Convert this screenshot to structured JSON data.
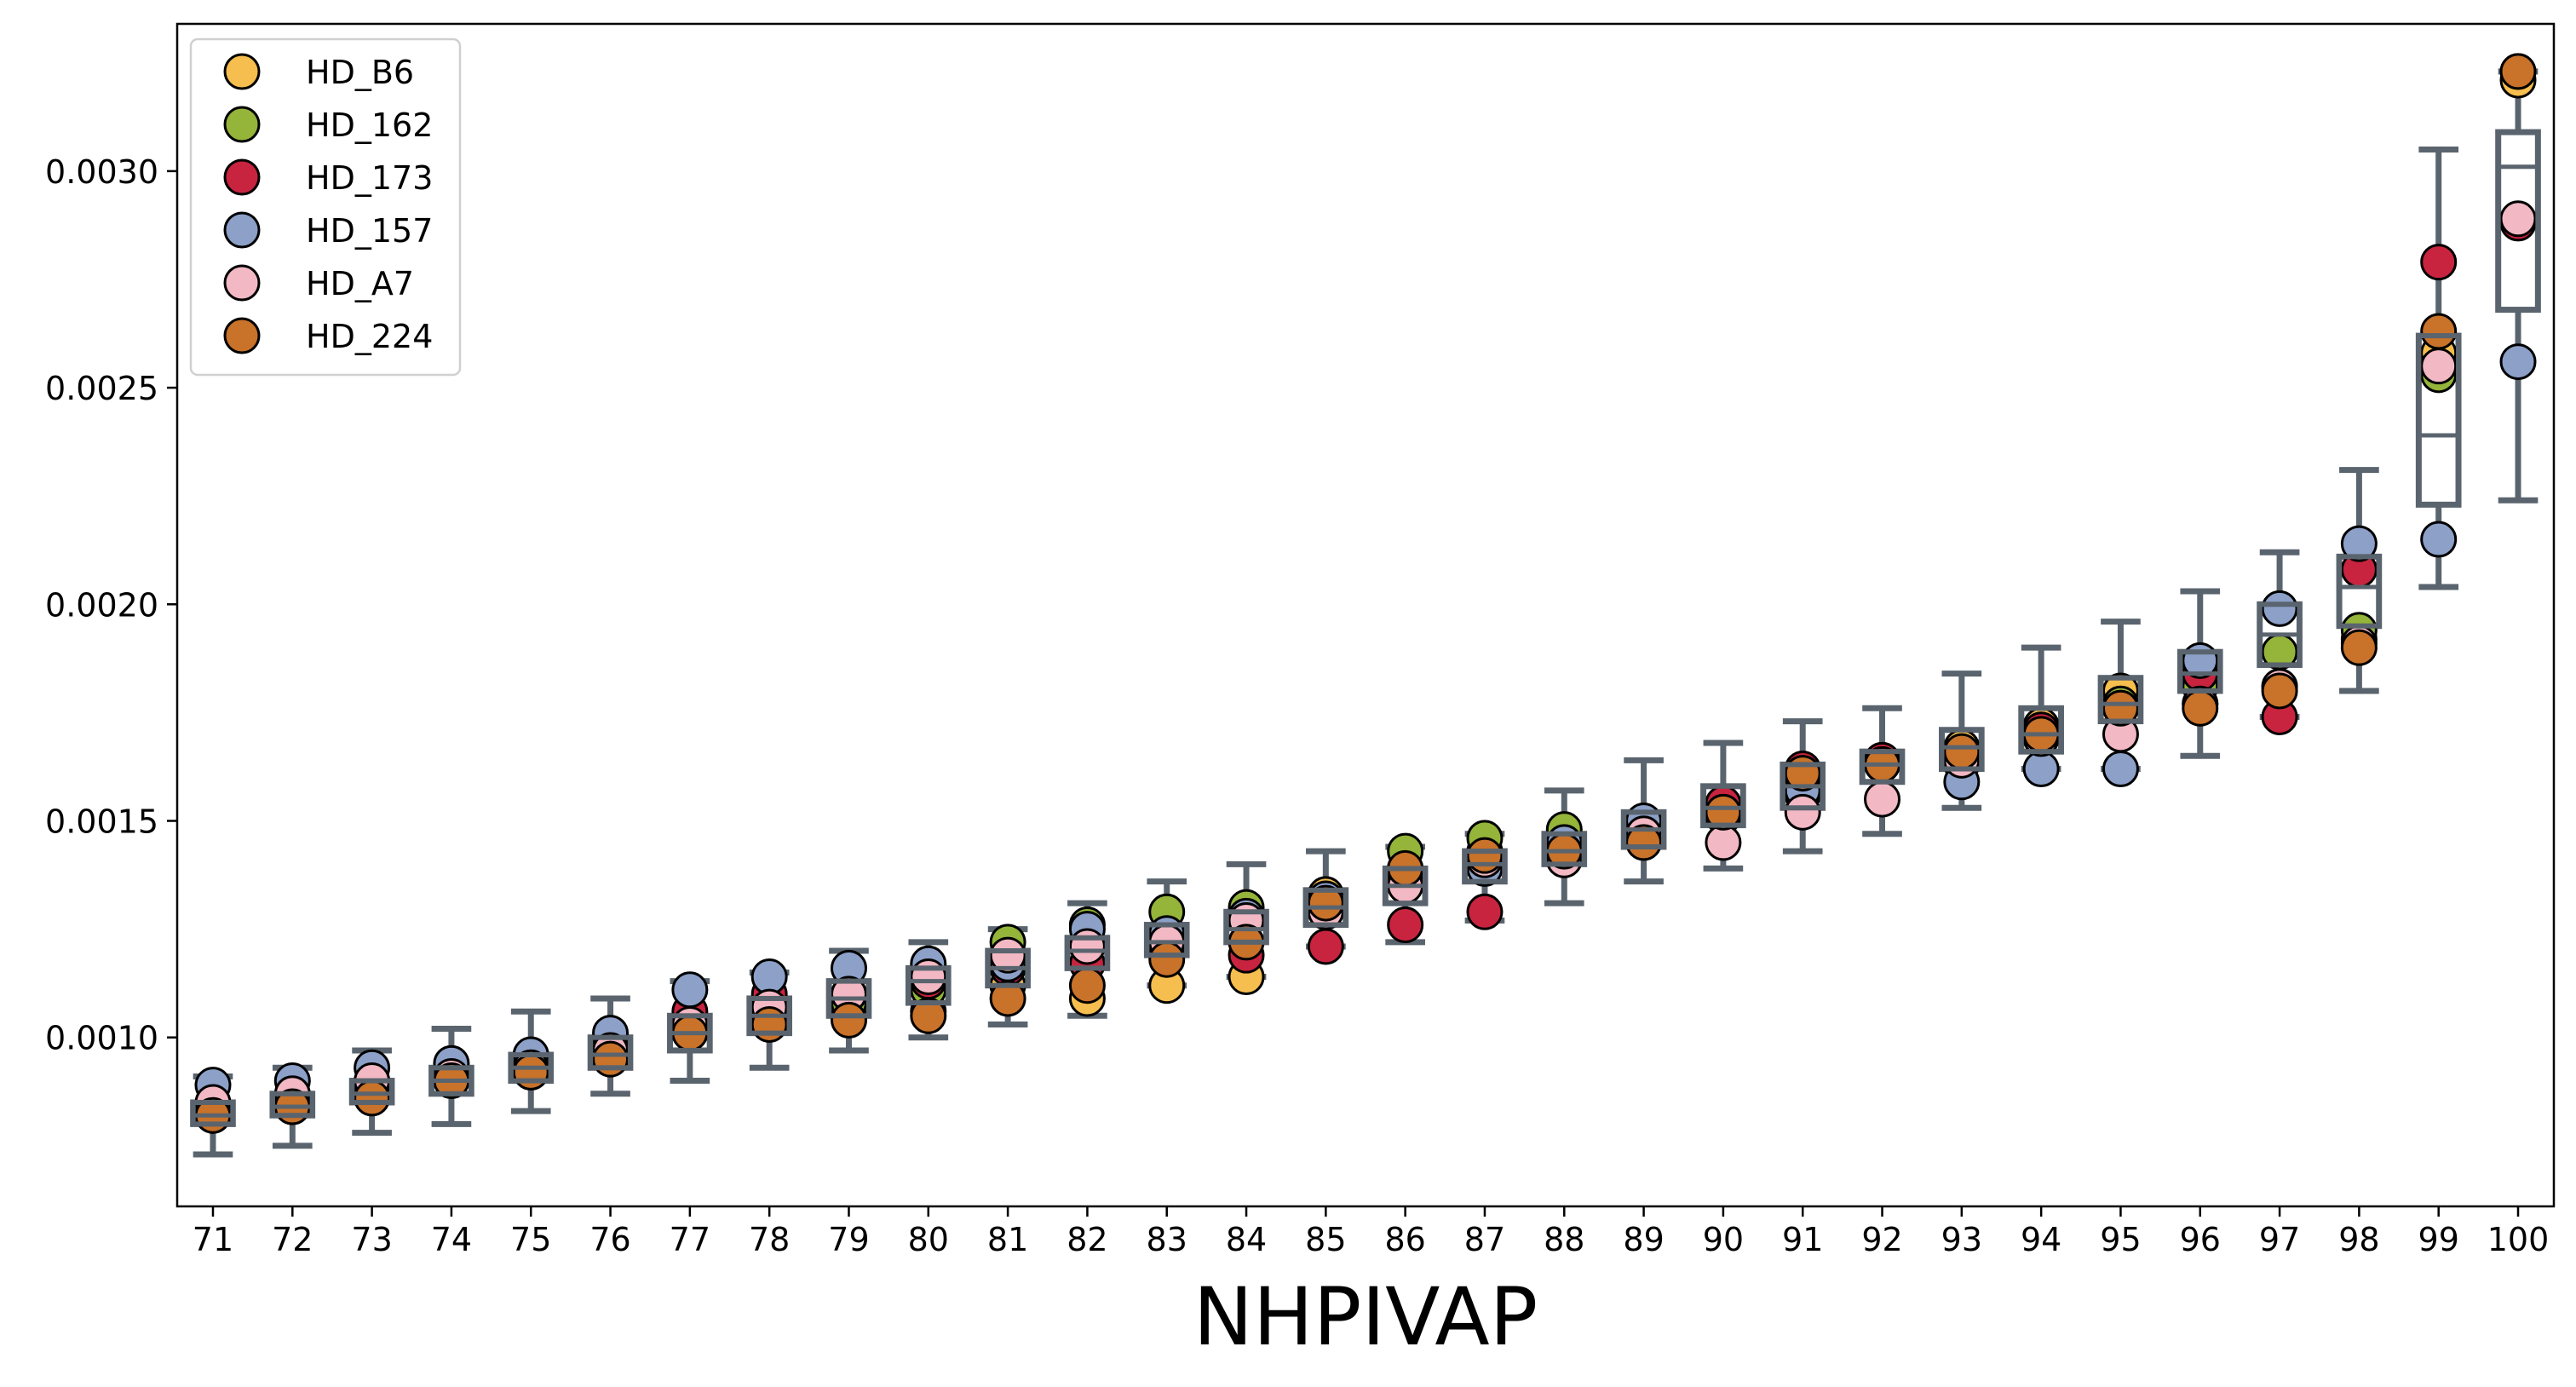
{
  "chart_data": {
    "type": "box",
    "xlabel": "NHPIVAP",
    "ylabel": "",
    "title": "",
    "x": [
      71,
      72,
      73,
      74,
      75,
      76,
      77,
      78,
      79,
      80,
      81,
      82,
      83,
      84,
      85,
      86,
      87,
      88,
      89,
      90,
      91,
      92,
      93,
      94,
      95,
      96,
      97,
      98,
      99,
      100
    ],
    "ylim": [
      0.00061,
      0.00334
    ],
    "yticks": [
      0.001,
      0.0015,
      0.002,
      0.0025,
      0.003
    ],
    "ytick_labels": [
      "0.0010",
      "0.0015",
      "0.0020",
      "0.0025",
      "0.0030"
    ],
    "grid": false,
    "legend_position": "top-left",
    "series": [
      {
        "name": "HD_B6",
        "color": "#F5BE4E",
        "values": [
          0.00082,
          0.00084,
          0.00089,
          0.00091,
          0.00092,
          0.00098,
          0.00102,
          0.00104,
          0.00105,
          0.00106,
          0.00112,
          0.00109,
          0.00112,
          0.00114,
          0.00133,
          0.00139,
          0.00143,
          0.00145,
          0.00147,
          0.00153,
          0.0016,
          0.00163,
          0.00167,
          0.00172,
          0.0018,
          0.00177,
          0.00181,
          0.00192,
          0.00258,
          0.00321
        ]
      },
      {
        "name": "HD_162",
        "color": "#94B43A",
        "values": [
          0.00082,
          0.00084,
          0.00087,
          0.00091,
          0.00094,
          0.00097,
          0.00101,
          0.00106,
          0.00108,
          0.00111,
          0.00122,
          0.00126,
          0.00129,
          0.0013,
          0.0013,
          0.00143,
          0.00146,
          0.00148,
          0.00146,
          0.00151,
          0.00156,
          0.00164,
          0.00163,
          0.0017,
          0.00177,
          0.00181,
          0.00189,
          0.00194,
          0.00253,
          0.00323
        ]
      },
      {
        "name": "HD_173",
        "color": "#C8243F",
        "values": [
          0.00083,
          0.00085,
          0.00088,
          0.00091,
          0.00093,
          0.00098,
          0.00106,
          0.0011,
          0.0011,
          0.00113,
          0.00116,
          0.00117,
          0.00121,
          0.00119,
          0.00121,
          0.00126,
          0.00129,
          0.00143,
          0.00149,
          0.00154,
          0.00162,
          0.00164,
          0.00165,
          0.00171,
          0.00176,
          0.00184,
          0.00174,
          0.00208,
          0.00279,
          0.00288
        ]
      },
      {
        "name": "HD_157",
        "color": "#8CA0C8",
        "values": [
          0.00089,
          0.0009,
          0.00093,
          0.00094,
          0.00096,
          0.00101,
          0.00111,
          0.00114,
          0.00116,
          0.00117,
          0.00117,
          0.00125,
          0.00124,
          0.00128,
          0.00132,
          0.00137,
          0.00139,
          0.00145,
          0.0015,
          0.00152,
          0.00157,
          0.00163,
          0.00159,
          0.00162,
          0.00162,
          0.00187,
          0.00199,
          0.00214,
          0.00215,
          0.00256
        ]
      },
      {
        "name": "HD_A7",
        "color": "#F2B8C4",
        "values": [
          0.00085,
          0.00087,
          0.0009,
          0.00091,
          0.00093,
          0.00097,
          0.00103,
          0.00107,
          0.0011,
          0.00114,
          0.00119,
          0.00121,
          0.00122,
          0.00127,
          0.00129,
          0.00135,
          0.00141,
          0.00141,
          0.00147,
          0.00145,
          0.00152,
          0.00155,
          0.00164,
          0.00169,
          0.0017,
          0.00177,
          0.00181,
          0.00191,
          0.00255,
          0.00289
        ]
      },
      {
        "name": "HD_224",
        "color": "#C8722A",
        "values": [
          0.00082,
          0.00084,
          0.00086,
          0.0009,
          0.00092,
          0.00095,
          0.00101,
          0.00103,
          0.00104,
          0.00105,
          0.00109,
          0.00112,
          0.00118,
          0.00122,
          0.00131,
          0.00139,
          0.00142,
          0.00143,
          0.00145,
          0.00152,
          0.00161,
          0.00163,
          0.00166,
          0.0017,
          0.00176,
          0.00176,
          0.0018,
          0.0019,
          0.00263,
          0.00323
        ]
      }
    ],
    "box_stats": [
      {
        "x": 71,
        "whislo": 0.00073,
        "q1": 0.0008,
        "med": 0.00082,
        "q3": 0.00085,
        "whishi": 0.00091
      },
      {
        "x": 72,
        "whislo": 0.00075,
        "q1": 0.00082,
        "med": 0.00084,
        "q3": 0.00087,
        "whishi": 0.00093
      },
      {
        "x": 73,
        "whislo": 0.00078,
        "q1": 0.00085,
        "med": 0.00087,
        "q3": 0.0009,
        "whishi": 0.00097
      },
      {
        "x": 74,
        "whislo": 0.0008,
        "q1": 0.00087,
        "med": 0.0009,
        "q3": 0.00093,
        "whishi": 0.00102
      },
      {
        "x": 75,
        "whislo": 0.00083,
        "q1": 0.0009,
        "med": 0.00093,
        "q3": 0.00096,
        "whishi": 0.00106
      },
      {
        "x": 76,
        "whislo": 0.00087,
        "q1": 0.00093,
        "med": 0.00096,
        "q3": 0.001,
        "whishi": 0.00109
      },
      {
        "x": 77,
        "whislo": 0.0009,
        "q1": 0.00097,
        "med": 0.00101,
        "q3": 0.00105,
        "whishi": 0.00113
      },
      {
        "x": 78,
        "whislo": 0.00093,
        "q1": 0.00101,
        "med": 0.00105,
        "q3": 0.00109,
        "whishi": 0.00115
      },
      {
        "x": 79,
        "whislo": 0.00097,
        "q1": 0.00105,
        "med": 0.00109,
        "q3": 0.00113,
        "whishi": 0.0012
      },
      {
        "x": 80,
        "whislo": 0.001,
        "q1": 0.00108,
        "med": 0.00113,
        "q3": 0.00116,
        "whishi": 0.00122
      },
      {
        "x": 81,
        "whislo": 0.00103,
        "q1": 0.00112,
        "med": 0.00116,
        "q3": 0.0012,
        "whishi": 0.00125
      },
      {
        "x": 82,
        "whislo": 0.00105,
        "q1": 0.00116,
        "med": 0.0012,
        "q3": 0.00123,
        "whishi": 0.00131
      },
      {
        "x": 83,
        "whislo": 0.00112,
        "q1": 0.00119,
        "med": 0.00122,
        "q3": 0.00126,
        "whishi": 0.00136
      },
      {
        "x": 84,
        "whislo": 0.00114,
        "q1": 0.00122,
        "med": 0.00125,
        "q3": 0.00129,
        "whishi": 0.0014
      },
      {
        "x": 85,
        "whislo": 0.00121,
        "q1": 0.00126,
        "med": 0.0013,
        "q3": 0.00134,
        "whishi": 0.00143
      },
      {
        "x": 86,
        "whislo": 0.00122,
        "q1": 0.00131,
        "med": 0.00135,
        "q3": 0.00139,
        "whishi": 0.00144
      },
      {
        "x": 87,
        "whislo": 0.00127,
        "q1": 0.00136,
        "med": 0.0014,
        "q3": 0.00143,
        "whishi": 0.00147
      },
      {
        "x": 88,
        "whislo": 0.00131,
        "q1": 0.0014,
        "med": 0.00143,
        "q3": 0.00147,
        "whishi": 0.00157
      },
      {
        "x": 89,
        "whislo": 0.00136,
        "q1": 0.00144,
        "med": 0.00148,
        "q3": 0.00152,
        "whishi": 0.00164
      },
      {
        "x": 90,
        "whislo": 0.00139,
        "q1": 0.00149,
        "med": 0.00153,
        "q3": 0.00158,
        "whishi": 0.00168
      },
      {
        "x": 91,
        "whislo": 0.00143,
        "q1": 0.00153,
        "med": 0.00158,
        "q3": 0.00163,
        "whishi": 0.00173
      },
      {
        "x": 92,
        "whislo": 0.00147,
        "q1": 0.00159,
        "med": 0.00163,
        "q3": 0.00166,
        "whishi": 0.00176
      },
      {
        "x": 93,
        "whislo": 0.00153,
        "q1": 0.00162,
        "med": 0.00167,
        "q3": 0.00171,
        "whishi": 0.00184
      },
      {
        "x": 94,
        "whislo": 0.00162,
        "q1": 0.00166,
        "med": 0.0017,
        "q3": 0.00176,
        "whishi": 0.0019
      },
      {
        "x": 95,
        "whislo": 0.00162,
        "q1": 0.00173,
        "med": 0.00177,
        "q3": 0.00183,
        "whishi": 0.00196
      },
      {
        "x": 96,
        "whislo": 0.00165,
        "q1": 0.0018,
        "med": 0.00184,
        "q3": 0.00189,
        "whishi": 0.00203
      },
      {
        "x": 97,
        "whislo": 0.00174,
        "q1": 0.00186,
        "med": 0.00193,
        "q3": 0.002,
        "whishi": 0.00212
      },
      {
        "x": 98,
        "whislo": 0.0018,
        "q1": 0.00195,
        "med": 0.00204,
        "q3": 0.00211,
        "whishi": 0.00231
      },
      {
        "x": 99,
        "whislo": 0.00204,
        "q1": 0.00223,
        "med": 0.00239,
        "q3": 0.00262,
        "whishi": 0.00305
      },
      {
        "x": 100,
        "whislo": 0.00224,
        "q1": 0.00268,
        "med": 0.00301,
        "q3": 0.00309,
        "whishi": 0.00323
      }
    ],
    "colors": {
      "box": "#5A646E",
      "marker_edge": "#000000",
      "axis": "#000000"
    }
  }
}
